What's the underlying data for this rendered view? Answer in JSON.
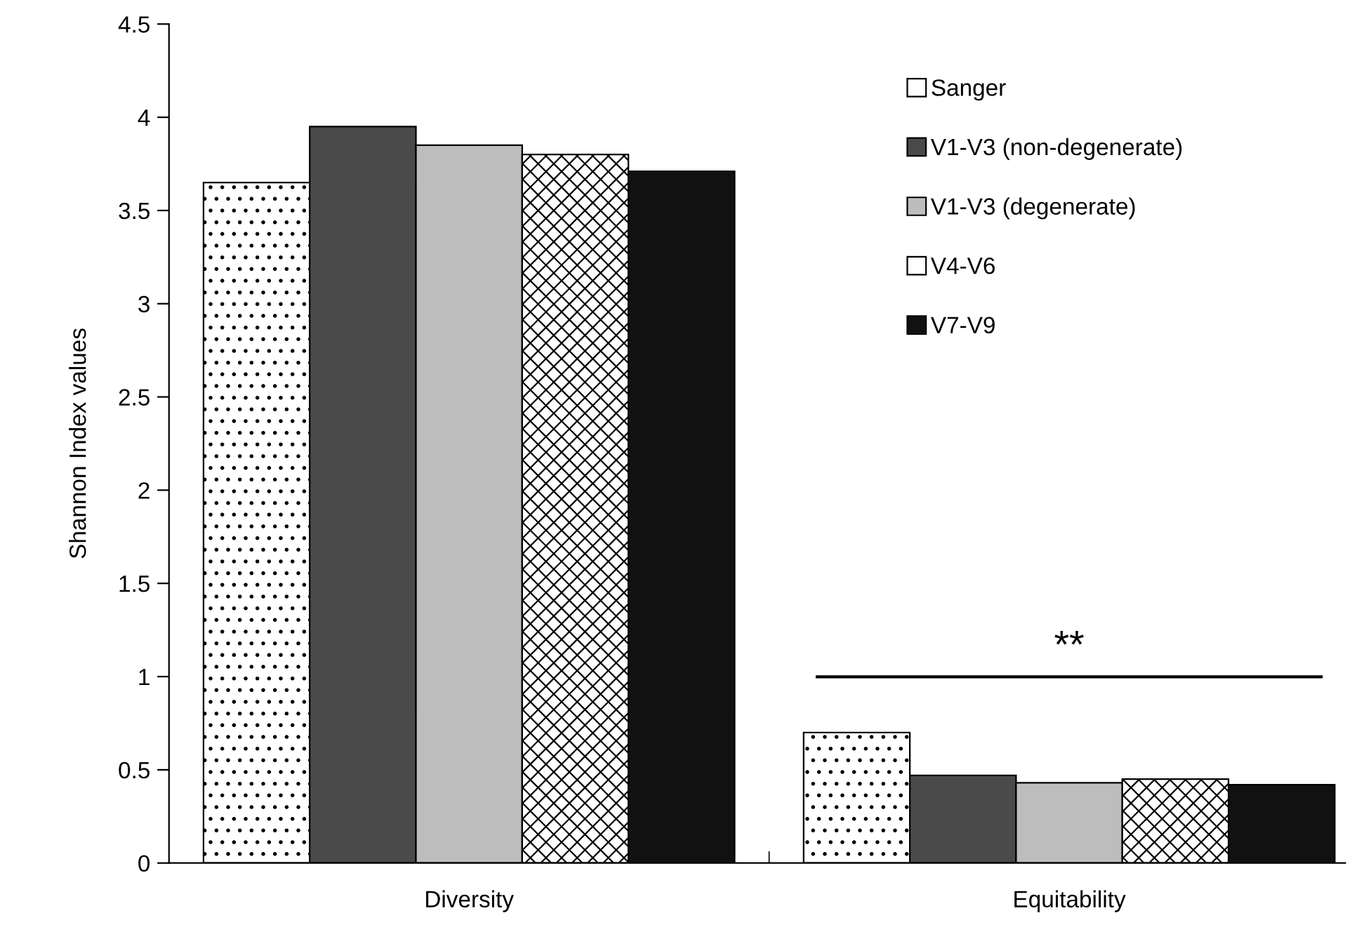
{
  "chart_data": {
    "type": "bar",
    "ylabel": "Shannon Index values",
    "categories": [
      "Diversity",
      "Equitability"
    ],
    "series": [
      {
        "name": "Sanger",
        "color": "#ffffff",
        "values": [
          3.65,
          0.7
        ]
      },
      {
        "name": "V1-V3 (non-degenerate)",
        "color": "#4a4a4a",
        "values": [
          3.95,
          0.47
        ]
      },
      {
        "name": "V1-V3 (degenerate)",
        "color": "#bdbdbd",
        "values": [
          3.85,
          0.43
        ]
      },
      {
        "name": "V4-V6",
        "color": "#ffffff",
        "values": [
          3.8,
          0.45
        ]
      },
      {
        "name": "V7-V9",
        "color": "#111111",
        "values": [
          3.71,
          0.42
        ]
      }
    ],
    "ylim": [
      0,
      4.5
    ],
    "yticks": [
      0,
      0.5,
      1,
      1.5,
      2,
      2.5,
      3,
      3.5,
      4,
      4.5
    ],
    "annotations": [
      "**"
    ],
    "legend": "top right",
    "grid": false
  }
}
